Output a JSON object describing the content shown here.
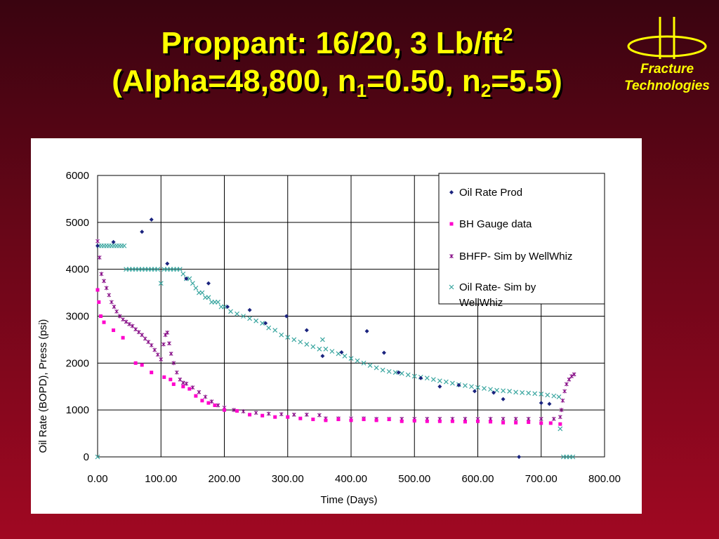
{
  "slide": {
    "title_line1_main": "Proppant: 16/20, 3 Lb/ft",
    "title_line1_sup": "2",
    "title_line2_a": "(Alpha=48,800, n",
    "title_line2_sub1": "1",
    "title_line2_b": "=0.50, n",
    "title_line2_sub2": "2",
    "title_line2_c": "=5.5)",
    "logo_line1": "Fracture",
    "logo_line2": "Technologies",
    "title_color": "#ffff00"
  },
  "chart_data": {
    "type": "scatter",
    "xlabel": "Time (Days)",
    "ylabel": "Oil Rate (BOPD), Press (psi)",
    "xlim": [
      0,
      800
    ],
    "ylim": [
      0,
      6000
    ],
    "x_ticks": [
      0,
      100,
      200,
      300,
      400,
      500,
      600,
      700,
      800
    ],
    "x_tick_labels": [
      "0.00",
      "100.00",
      "200.00",
      "300.00",
      "400.00",
      "500.00",
      "600.00",
      "700.00",
      "800.00"
    ],
    "y_ticks": [
      0,
      1000,
      2000,
      3000,
      4000,
      5000,
      6000
    ],
    "y_tick_labels": [
      "0",
      "1000",
      "2000",
      "3000",
      "4000",
      "5000",
      "6000"
    ],
    "grid": true,
    "legend_position": "top-right",
    "series": [
      {
        "name": "Oil Rate Prod",
        "marker": "diamond",
        "color": "#1a237e",
        "points": [
          [
            0,
            4500
          ],
          [
            25,
            4580
          ],
          [
            70,
            4800
          ],
          [
            85,
            5060
          ],
          [
            110,
            4120
          ],
          [
            140,
            3800
          ],
          [
            175,
            3700
          ],
          [
            205,
            3200
          ],
          [
            240,
            3130
          ],
          [
            265,
            2850
          ],
          [
            298,
            3000
          ],
          [
            330,
            2700
          ],
          [
            355,
            2150
          ],
          [
            385,
            2230
          ],
          [
            425,
            2680
          ],
          [
            452,
            2220
          ],
          [
            475,
            1800
          ],
          [
            510,
            1680
          ],
          [
            540,
            1500
          ],
          [
            570,
            1530
          ],
          [
            595,
            1400
          ],
          [
            625,
            1370
          ],
          [
            640,
            1230
          ],
          [
            665,
            0
          ],
          [
            700,
            1150
          ],
          [
            713,
            1130
          ]
        ]
      },
      {
        "name": "BH Gauge data",
        "marker": "square",
        "color": "#ff00cc",
        "points": [
          [
            0,
            3560
          ],
          [
            2,
            3300
          ],
          [
            5,
            3000
          ],
          [
            10,
            2870
          ],
          [
            25,
            2700
          ],
          [
            40,
            2540
          ],
          [
            60,
            2000
          ],
          [
            70,
            1960
          ],
          [
            85,
            1800
          ],
          [
            105,
            1700
          ],
          [
            115,
            1650
          ],
          [
            120,
            1550
          ],
          [
            135,
            1500
          ],
          [
            145,
            1450
          ],
          [
            155,
            1300
          ],
          [
            165,
            1200
          ],
          [
            175,
            1150
          ],
          [
            185,
            1100
          ],
          [
            200,
            1000
          ],
          [
            220,
            980
          ],
          [
            240,
            900
          ],
          [
            260,
            880
          ],
          [
            280,
            850
          ],
          [
            300,
            850
          ],
          [
            320,
            820
          ],
          [
            340,
            800
          ],
          [
            360,
            780
          ],
          [
            380,
            800
          ],
          [
            400,
            780
          ],
          [
            420,
            800
          ],
          [
            440,
            780
          ],
          [
            460,
            800
          ],
          [
            480,
            760
          ],
          [
            500,
            770
          ],
          [
            520,
            760
          ],
          [
            540,
            760
          ],
          [
            560,
            760
          ],
          [
            580,
            750
          ],
          [
            600,
            760
          ],
          [
            620,
            750
          ],
          [
            640,
            730
          ],
          [
            660,
            730
          ],
          [
            680,
            740
          ],
          [
            700,
            720
          ],
          [
            715,
            720
          ],
          [
            730,
            700
          ]
        ]
      },
      {
        "name": "BHFP- Sim by WellWhiz",
        "marker": "star",
        "color": "#800080",
        "points": [
          [
            0,
            4600
          ],
          [
            3,
            4250
          ],
          [
            6,
            3900
          ],
          [
            10,
            3750
          ],
          [
            14,
            3600
          ],
          [
            18,
            3450
          ],
          [
            22,
            3300
          ],
          [
            26,
            3200
          ],
          [
            30,
            3100
          ],
          [
            35,
            3000
          ],
          [
            40,
            2930
          ],
          [
            45,
            2880
          ],
          [
            50,
            2830
          ],
          [
            55,
            2790
          ],
          [
            60,
            2720
          ],
          [
            65,
            2660
          ],
          [
            70,
            2600
          ],
          [
            75,
            2520
          ],
          [
            80,
            2450
          ],
          [
            85,
            2380
          ],
          [
            90,
            2280
          ],
          [
            95,
            2180
          ],
          [
            100,
            2080
          ],
          [
            104,
            2400
          ],
          [
            107,
            2600
          ],
          [
            110,
            2650
          ],
          [
            113,
            2420
          ],
          [
            116,
            2200
          ],
          [
            120,
            2000
          ],
          [
            125,
            1800
          ],
          [
            130,
            1650
          ],
          [
            135,
            1580
          ],
          [
            140,
            1560
          ],
          [
            150,
            1480
          ],
          [
            160,
            1380
          ],
          [
            170,
            1280
          ],
          [
            180,
            1180
          ],
          [
            190,
            1100
          ],
          [
            200,
            1050
          ],
          [
            215,
            1000
          ],
          [
            230,
            970
          ],
          [
            250,
            940
          ],
          [
            270,
            920
          ],
          [
            290,
            910
          ],
          [
            310,
            900
          ],
          [
            330,
            900
          ],
          [
            350,
            890
          ],
          [
            360,
            820
          ],
          [
            380,
            820
          ],
          [
            400,
            820
          ],
          [
            420,
            820
          ],
          [
            440,
            810
          ],
          [
            460,
            810
          ],
          [
            480,
            810
          ],
          [
            500,
            810
          ],
          [
            520,
            810
          ],
          [
            540,
            810
          ],
          [
            560,
            810
          ],
          [
            580,
            810
          ],
          [
            600,
            810
          ],
          [
            620,
            810
          ],
          [
            640,
            810
          ],
          [
            660,
            810
          ],
          [
            680,
            810
          ],
          [
            700,
            810
          ],
          [
            720,
            810
          ],
          [
            730,
            850
          ],
          [
            732,
            1000
          ],
          [
            734,
            1200
          ],
          [
            737,
            1400
          ],
          [
            740,
            1550
          ],
          [
            744,
            1650
          ],
          [
            748,
            1720
          ],
          [
            752,
            1760
          ]
        ]
      },
      {
        "name": "Oil Rate- Sim by WellWhiz",
        "marker": "cross",
        "color": "#3aa6a0",
        "points": [
          [
            0,
            0
          ],
          [
            2,
            4500
          ],
          [
            6,
            4500
          ],
          [
            10,
            4500
          ],
          [
            14,
            4500
          ],
          [
            18,
            4500
          ],
          [
            22,
            4500
          ],
          [
            26,
            4500
          ],
          [
            30,
            4500
          ],
          [
            34,
            4500
          ],
          [
            38,
            4500
          ],
          [
            42,
            4500
          ],
          [
            45,
            4000
          ],
          [
            50,
            4000
          ],
          [
            55,
            4000
          ],
          [
            60,
            4000
          ],
          [
            65,
            4000
          ],
          [
            70,
            4000
          ],
          [
            75,
            4000
          ],
          [
            80,
            4000
          ],
          [
            85,
            4000
          ],
          [
            90,
            4000
          ],
          [
            95,
            4000
          ],
          [
            100,
            3700
          ],
          [
            105,
            4000
          ],
          [
            110,
            4000
          ],
          [
            115,
            4000
          ],
          [
            120,
            4000
          ],
          [
            125,
            4000
          ],
          [
            130,
            4000
          ],
          [
            135,
            3900
          ],
          [
            140,
            3800
          ],
          [
            145,
            3800
          ],
          [
            150,
            3700
          ],
          [
            155,
            3600
          ],
          [
            160,
            3500
          ],
          [
            165,
            3500
          ],
          [
            170,
            3400
          ],
          [
            175,
            3400
          ],
          [
            180,
            3300
          ],
          [
            185,
            3300
          ],
          [
            190,
            3300
          ],
          [
            195,
            3200
          ],
          [
            200,
            3200
          ],
          [
            210,
            3100
          ],
          [
            220,
            3050
          ],
          [
            230,
            3000
          ],
          [
            240,
            2950
          ],
          [
            250,
            2900
          ],
          [
            260,
            2850
          ],
          [
            270,
            2750
          ],
          [
            280,
            2700
          ],
          [
            290,
            2600
          ],
          [
            300,
            2550
          ],
          [
            310,
            2500
          ],
          [
            320,
            2450
          ],
          [
            330,
            2400
          ],
          [
            340,
            2350
          ],
          [
            350,
            2300
          ],
          [
            355,
            2500
          ],
          [
            360,
            2300
          ],
          [
            370,
            2250
          ],
          [
            380,
            2200
          ],
          [
            390,
            2150
          ],
          [
            400,
            2100
          ],
          [
            410,
            2050
          ],
          [
            420,
            2000
          ],
          [
            430,
            1950
          ],
          [
            440,
            1900
          ],
          [
            450,
            1850
          ],
          [
            460,
            1820
          ],
          [
            470,
            1800
          ],
          [
            480,
            1780
          ],
          [
            490,
            1750
          ],
          [
            500,
            1720
          ],
          [
            510,
            1700
          ],
          [
            520,
            1680
          ],
          [
            530,
            1650
          ],
          [
            540,
            1620
          ],
          [
            550,
            1600
          ],
          [
            560,
            1570
          ],
          [
            570,
            1540
          ],
          [
            580,
            1520
          ],
          [
            590,
            1500
          ],
          [
            600,
            1480
          ],
          [
            610,
            1460
          ],
          [
            620,
            1440
          ],
          [
            630,
            1420
          ],
          [
            640,
            1410
          ],
          [
            650,
            1400
          ],
          [
            660,
            1380
          ],
          [
            670,
            1370
          ],
          [
            680,
            1360
          ],
          [
            690,
            1350
          ],
          [
            700,
            1340
          ],
          [
            710,
            1320
          ],
          [
            720,
            1300
          ],
          [
            728,
            1280
          ],
          [
            730,
            600
          ],
          [
            735,
            0
          ],
          [
            740,
            0
          ],
          [
            745,
            0
          ],
          [
            750,
            0
          ]
        ]
      }
    ]
  }
}
